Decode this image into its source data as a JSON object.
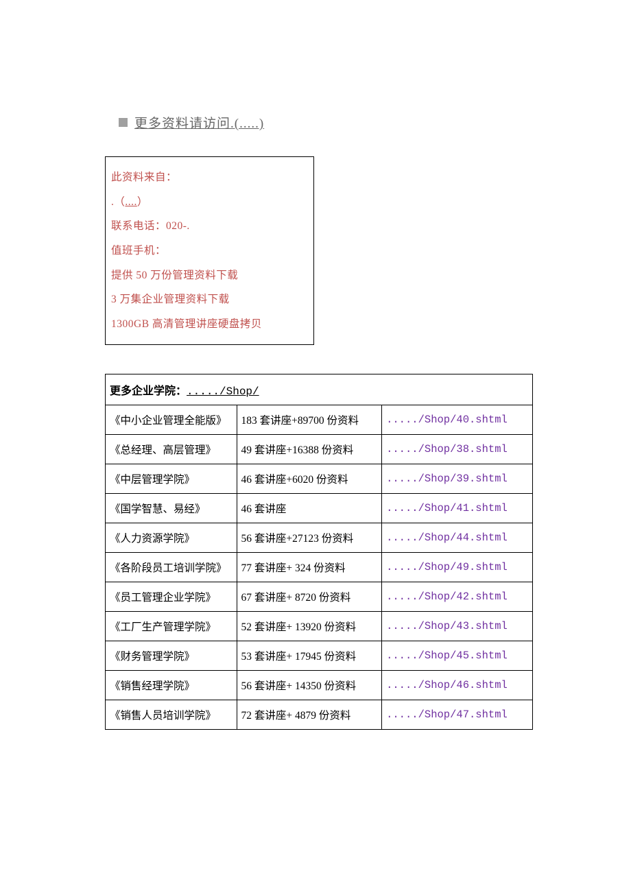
{
  "header": {
    "title": "更多资料请访问.(.....)"
  },
  "infoBox": {
    "line1": "此资料来自：",
    "line2_prefix": ".（",
    "line2_link": "....",
    "line2_suffix": "）",
    "line3": "联系电话：020-.",
    "line4": "值班手机：",
    "line5": "提供 50 万份管理资料下载",
    "line6": "3 万集企业管理资料下载",
    "line7": "1300GB 高清管理讲座硬盘拷贝"
  },
  "table": {
    "headerLabel": "更多企业学院：",
    "headerLink": "...../Shop/",
    "rows": [
      {
        "name": "《中小企业管理全能版》",
        "desc": "183 套讲座+89700 份资料",
        "url": "...../Shop/40.shtml"
      },
      {
        "name": "《总经理、高层管理》",
        "desc": "49 套讲座+16388 份资料",
        "url": "...../Shop/38.shtml"
      },
      {
        "name": "《中层管理学院》",
        "desc": "46 套讲座+6020 份资料",
        "url": "...../Shop/39.shtml"
      },
      {
        "name": "《国学智慧、易经》",
        "desc": "46 套讲座",
        "url": "...../Shop/41.shtml"
      },
      {
        "name": "《人力资源学院》",
        "desc": "56 套讲座+27123 份资料",
        "url": "...../Shop/44.shtml"
      },
      {
        "name": "《各阶段员工培训学院》",
        "desc": "77 套讲座+ 324 份资料",
        "url": "...../Shop/49.shtml"
      },
      {
        "name": "《员工管理企业学院》",
        "desc": "67 套讲座+ 8720 份资料",
        "url": "...../Shop/42.shtml"
      },
      {
        "name": "《工厂生产管理学院》",
        "desc": "52 套讲座+ 13920 份资料",
        "url": "...../Shop/43.shtml"
      },
      {
        "name": "《财务管理学院》",
        "desc": "53 套讲座+ 17945 份资料",
        "url": "...../Shop/45.shtml"
      },
      {
        "name": "《销售经理学院》",
        "desc": "56 套讲座+ 14350 份资料",
        "url": "...../Shop/46.shtml"
      },
      {
        "name": "《销售人员培训学院》",
        "desc": "72 套讲座+ 4879 份资料",
        "url": "...../Shop/47.shtml"
      }
    ]
  },
  "colors": {
    "infoText": "#c0504d",
    "urlText": "#7030a0",
    "headerGrey": "#666666",
    "bulletGrey": "#a0a0a0"
  }
}
